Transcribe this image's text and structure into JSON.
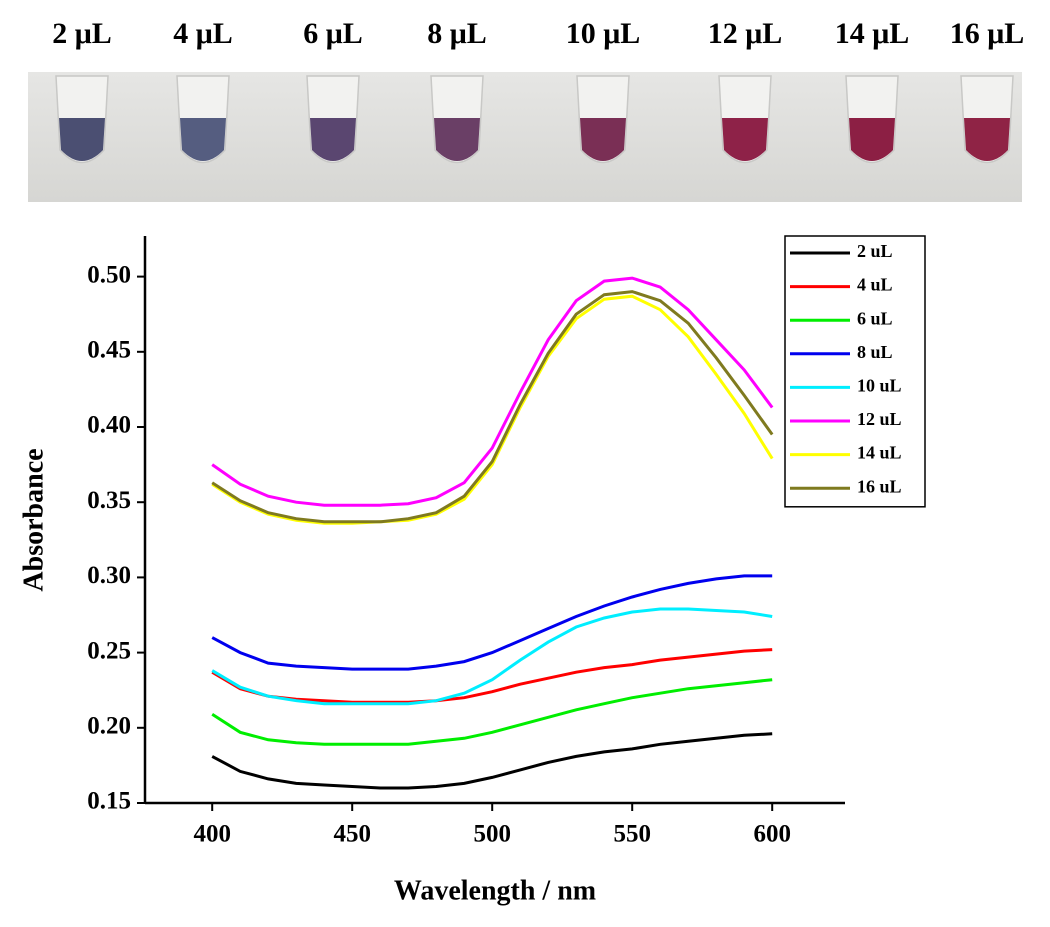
{
  "photo": {
    "labels": [
      "2 μL",
      "4 μL",
      "6 μL",
      "8 μL",
      "10 μL",
      "12 μL",
      "14 μL",
      "16 μL"
    ]
  },
  "chart_data": {
    "type": "line",
    "xlabel": "Wavelength / nm",
    "ylabel": "Absorbance",
    "x": [
      400,
      410,
      420,
      430,
      440,
      450,
      460,
      470,
      480,
      490,
      500,
      510,
      520,
      530,
      540,
      550,
      560,
      570,
      580,
      590,
      600
    ],
    "series": [
      {
        "name": "2 uL",
        "color": "#000000",
        "values": [
          0.181,
          0.171,
          0.166,
          0.163,
          0.162,
          0.161,
          0.16,
          0.16,
          0.161,
          0.163,
          0.167,
          0.172,
          0.177,
          0.181,
          0.184,
          0.186,
          0.189,
          0.191,
          0.193,
          0.195,
          0.196
        ]
      },
      {
        "name": "4 uL",
        "color": "#ff0000",
        "values": [
          0.237,
          0.226,
          0.221,
          0.219,
          0.218,
          0.217,
          0.217,
          0.217,
          0.218,
          0.22,
          0.224,
          0.229,
          0.233,
          0.237,
          0.24,
          0.242,
          0.245,
          0.247,
          0.249,
          0.251,
          0.252
        ]
      },
      {
        "name": "6 uL",
        "color": "#00ee00",
        "values": [
          0.209,
          0.197,
          0.192,
          0.19,
          0.189,
          0.189,
          0.189,
          0.189,
          0.191,
          0.193,
          0.197,
          0.202,
          0.207,
          0.212,
          0.216,
          0.22,
          0.223,
          0.226,
          0.228,
          0.23,
          0.232
        ]
      },
      {
        "name": "8 uL",
        "color": "#0000ee",
        "values": [
          0.26,
          0.25,
          0.243,
          0.241,
          0.24,
          0.239,
          0.239,
          0.239,
          0.241,
          0.244,
          0.25,
          0.258,
          0.266,
          0.274,
          0.281,
          0.287,
          0.292,
          0.296,
          0.299,
          0.301,
          0.301
        ]
      },
      {
        "name": "10 uL",
        "color": "#00eeff",
        "values": [
          0.238,
          0.227,
          0.221,
          0.218,
          0.216,
          0.216,
          0.216,
          0.216,
          0.218,
          0.223,
          0.232,
          0.245,
          0.257,
          0.267,
          0.273,
          0.277,
          0.279,
          0.279,
          0.278,
          0.277,
          0.274
        ]
      },
      {
        "name": "12 uL",
        "color": "#ff00ff",
        "values": [
          0.375,
          0.362,
          0.354,
          0.35,
          0.348,
          0.348,
          0.348,
          0.349,
          0.353,
          0.363,
          0.386,
          0.423,
          0.458,
          0.484,
          0.497,
          0.499,
          0.493,
          0.478,
          0.458,
          0.438,
          0.413
        ]
      },
      {
        "name": "14 uL",
        "color": "#ffff00",
        "values": [
          0.362,
          0.35,
          0.342,
          0.338,
          0.336,
          0.336,
          0.337,
          0.338,
          0.342,
          0.352,
          0.375,
          0.413,
          0.447,
          0.472,
          0.485,
          0.487,
          0.478,
          0.46,
          0.435,
          0.409,
          0.379
        ]
      },
      {
        "name": "16 uL",
        "color": "#7f7a1f",
        "values": [
          0.363,
          0.351,
          0.343,
          0.339,
          0.337,
          0.337,
          0.337,
          0.339,
          0.343,
          0.354,
          0.377,
          0.415,
          0.449,
          0.475,
          0.488,
          0.49,
          0.484,
          0.469,
          0.446,
          0.421,
          0.395
        ]
      }
    ],
    "xlim": [
      376,
      626
    ],
    "xticks": [
      400,
      450,
      500,
      550,
      600
    ],
    "ylim": [
      0.15,
      0.527
    ],
    "yticks": [
      0.15,
      {
        "value": 0.2,
        "label": "0.20"
      },
      0.25,
      {
        "value": 0.3,
        "label": "0.30"
      },
      0.35,
      {
        "value": 0.4,
        "label": "0.40"
      },
      0.45,
      {
        "value": 0.5,
        "label": "0.50"
      }
    ],
    "grid": false,
    "legend": "upper right"
  }
}
